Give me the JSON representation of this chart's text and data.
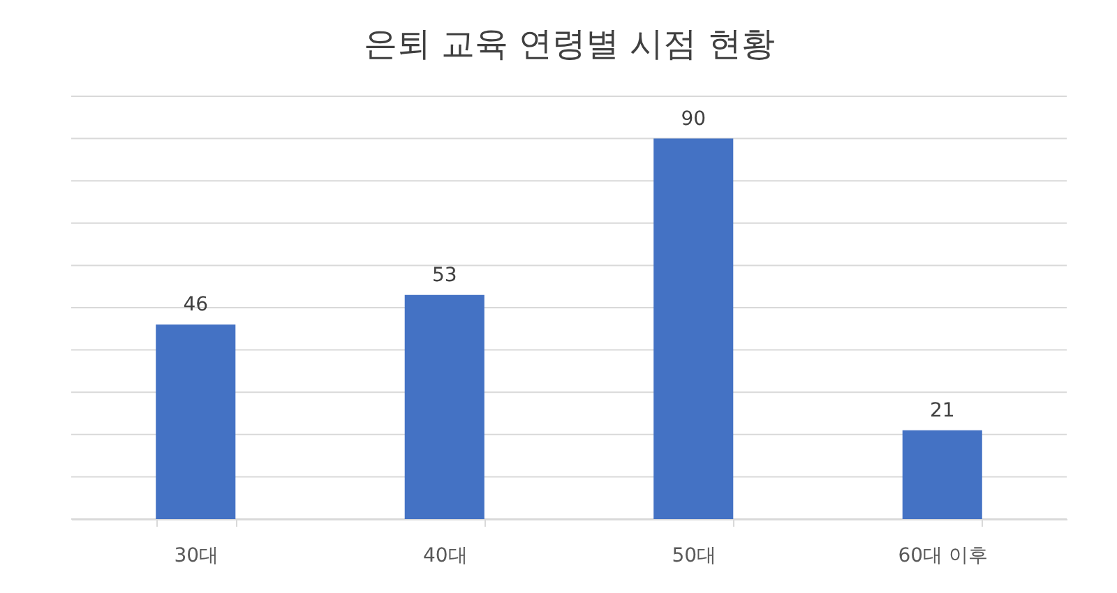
{
  "chart_data": {
    "type": "bar",
    "title": "은퇴 교육 연령별 시점 현황",
    "categories": [
      "30대",
      "40대",
      "50대",
      "60대 이후"
    ],
    "values": [
      46,
      53,
      90,
      21
    ],
    "color": "#4472c4",
    "ylim": [
      0,
      100
    ],
    "yticks": [
      {
        "value": 0,
        "label": null
      },
      {
        "value": 10,
        "label": null
      },
      {
        "value": 20,
        "label": null
      },
      {
        "value": 30,
        "label": null
      },
      {
        "value": 40,
        "label": null
      },
      {
        "value": 50,
        "label": null
      },
      {
        "value": 60,
        "label": null
      },
      {
        "value": 70,
        "label": null
      },
      {
        "value": 80,
        "label": null
      },
      {
        "value": 90,
        "label": null
      },
      {
        "value": 100,
        "label": null
      }
    ],
    "grid": "y",
    "data_labels": true,
    "tick_labels": "x"
  }
}
